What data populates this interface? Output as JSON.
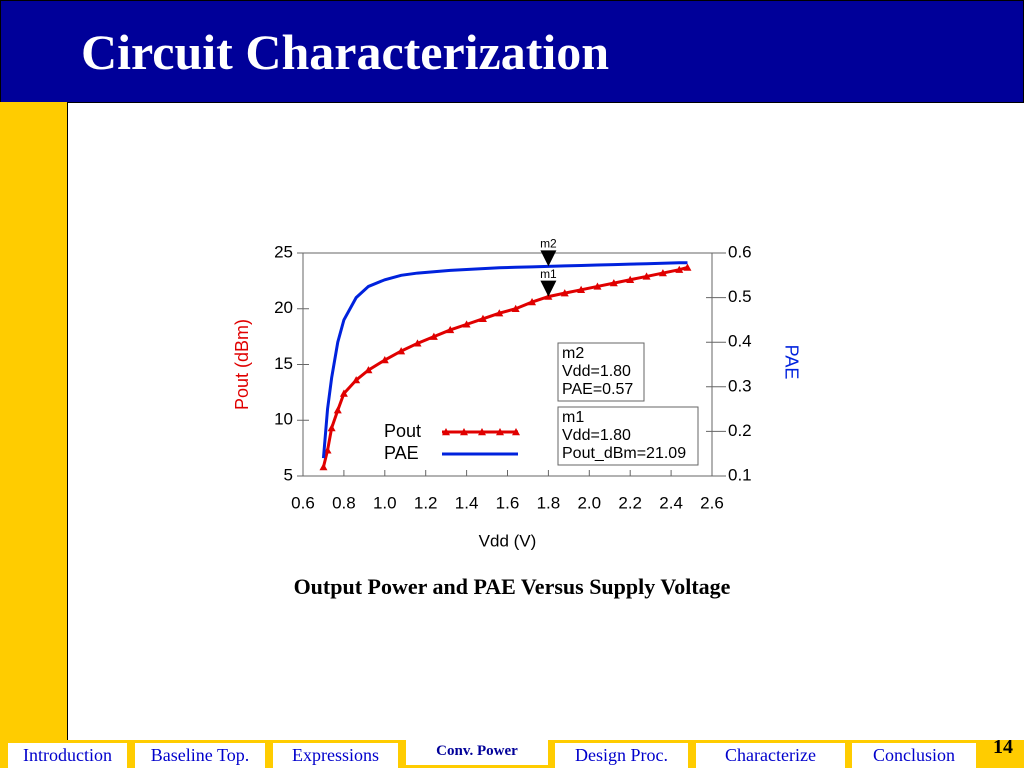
{
  "header": {
    "title": "Circuit Characterization"
  },
  "caption": "Output Power and PAE Versus Supply Voltage",
  "nav": {
    "tabs": [
      "Introduction",
      "Baseline Top.",
      "Expressions",
      "Conv. Power",
      "Design Proc.",
      "Characterize",
      "Conclusion"
    ]
  },
  "page_number": "14",
  "chart_data": {
    "type": "line",
    "xlabel": "Vdd (V)",
    "ylabel": "Pout (dBm)",
    "y2label": "PAE",
    "x": [
      0.7,
      0.72,
      0.74,
      0.77,
      0.8,
      0.86,
      0.92,
      1.0,
      1.08,
      1.16,
      1.24,
      1.32,
      1.4,
      1.48,
      1.56,
      1.64,
      1.72,
      1.8,
      1.88,
      1.96,
      2.04,
      2.12,
      2.2,
      2.28,
      2.36,
      2.44,
      2.48
    ],
    "series": [
      {
        "name": "Pout",
        "color": "#e00000",
        "marker": "triangle",
        "values": [
          5.8,
          7.3,
          9.3,
          10.9,
          12.4,
          13.6,
          14.5,
          15.4,
          16.2,
          16.9,
          17.5,
          18.1,
          18.6,
          19.1,
          19.6,
          20.0,
          20.6,
          21.09,
          21.4,
          21.7,
          22.0,
          22.3,
          22.6,
          22.9,
          23.2,
          23.5,
          23.7
        ]
      },
      {
        "name": "PAE",
        "color": "#0022dd",
        "axis": "y2",
        "values": [
          0.14,
          0.25,
          0.32,
          0.4,
          0.45,
          0.5,
          0.525,
          0.54,
          0.55,
          0.555,
          0.558,
          0.561,
          0.563,
          0.565,
          0.567,
          0.568,
          0.569,
          0.57,
          0.571,
          0.572,
          0.573,
          0.574,
          0.575,
          0.576,
          0.577,
          0.578,
          0.578
        ]
      }
    ],
    "xlim": [
      0.6,
      2.6
    ],
    "xticks": [
      {
        "value": 0.6,
        "label": "0.6"
      },
      {
        "value": 0.8,
        "label": "0.8"
      },
      {
        "value": 1.0,
        "label": "1.0"
      },
      {
        "value": 1.2,
        "label": "1.2"
      },
      {
        "value": 1.4,
        "label": "1.4"
      },
      {
        "value": 1.6,
        "label": "1.6"
      },
      {
        "value": 1.8,
        "label": "1.8"
      },
      {
        "value": 2.0,
        "label": "2.0"
      },
      {
        "value": 2.2,
        "label": "2.2"
      },
      {
        "value": 2.4,
        "label": "2.4"
      },
      {
        "value": 2.6,
        "label": "2.6"
      }
    ],
    "ylim": [
      5,
      25
    ],
    "yticks": [
      5,
      10,
      15,
      20,
      25
    ],
    "y2lim": [
      0.1,
      0.6
    ],
    "y2ticks": [
      0.1,
      0.2,
      0.3,
      0.4,
      0.5,
      0.6
    ],
    "markers": [
      {
        "name": "m2",
        "x": 1.8,
        "y": 0.57,
        "axis": "y2",
        "lines": [
          "m2",
          "Vdd=1.80",
          "PAE=0.57"
        ]
      },
      {
        "name": "m1",
        "x": 1.8,
        "y": 21.09,
        "lines": [
          "m1",
          "Vdd=1.80",
          "Pout_dBm=21.09"
        ]
      }
    ]
  }
}
